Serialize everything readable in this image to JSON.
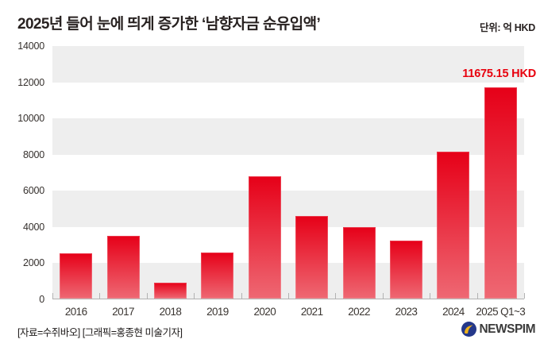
{
  "header": {
    "title": "2025년 들어 눈에 띄게 증가한 ‘남향자금 순유입액’",
    "unit_label": "단위: 억 HKD"
  },
  "chart_data": {
    "type": "bar",
    "categories": [
      "2016",
      "2017",
      "2018",
      "2019",
      "2020",
      "2021",
      "2022",
      "2023",
      "2024",
      "2025 Q1~3"
    ],
    "values": [
      2500,
      3450,
      870,
      2530,
      6780,
      4580,
      3950,
      3200,
      8100,
      11675.15
    ],
    "title": "2025년 들어 눈에 띄게 증가한 ‘남향자금 순유입액’",
    "xlabel": "",
    "ylabel": "억 HKD",
    "ylim": [
      0,
      14000
    ],
    "yticks": [
      0,
      2000,
      4000,
      6000,
      8000,
      10000,
      12000,
      14000
    ],
    "grid": "alternating-horizontal-bands",
    "legend": "none",
    "highlight_label": "11675.15 HKD",
    "highlight_value": 11675.15,
    "colors": {
      "bar_top": "#e60018",
      "bar_bottom": "#ee6873",
      "band_gray": "#eeeeee",
      "axis_line": "#b2b2b2",
      "value_label": "#e8000d"
    }
  },
  "footer": {
    "credit": "[자료=수쥐바오] [그래픽=홍종현 미술기자]",
    "logo_text": "NEWSPIM",
    "logo_colors": {
      "circle": "#24388a",
      "swoosh": "#f0b31a"
    }
  }
}
